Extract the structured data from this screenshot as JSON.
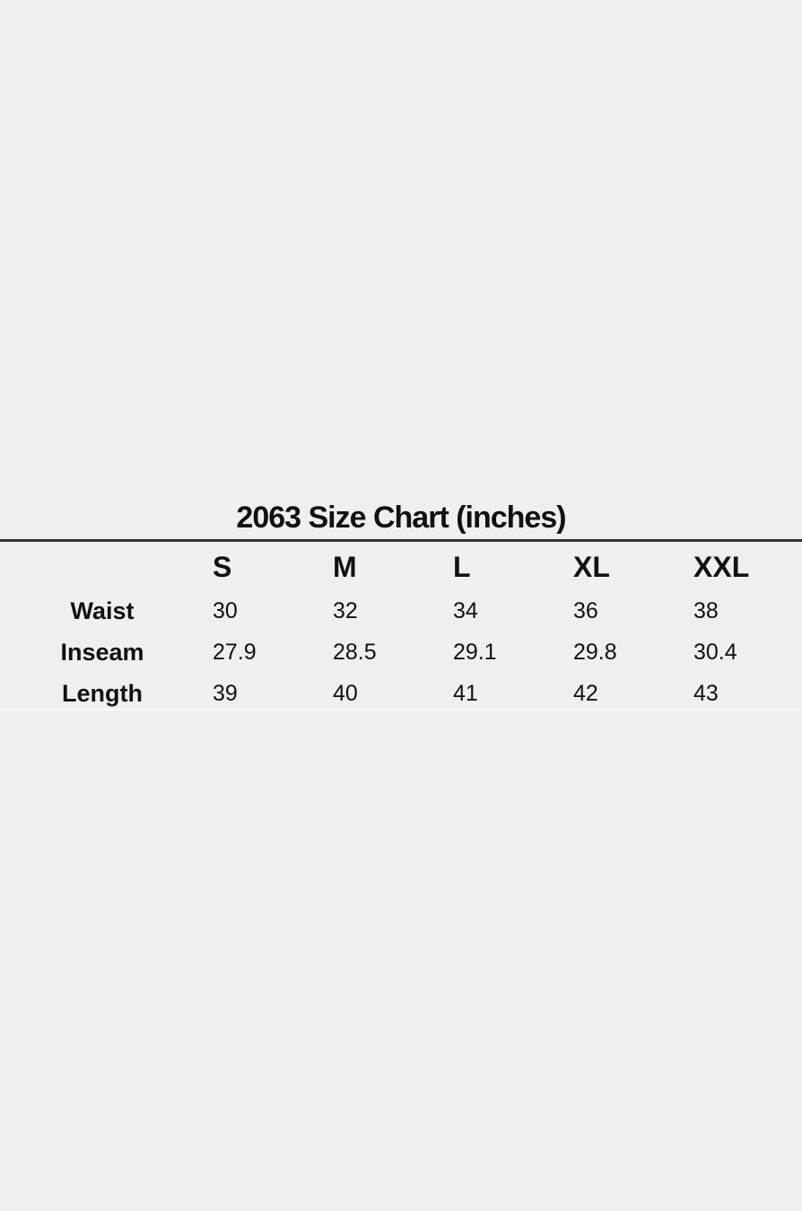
{
  "title": "2063 Size Chart (inches)",
  "chart_data": {
    "type": "table",
    "title": "2063 Size Chart (inches)",
    "columns": [
      "S",
      "M",
      "L",
      "XL",
      "XXL"
    ],
    "rows": [
      {
        "label": "Waist",
        "values": [
          "30",
          "32",
          "34",
          "36",
          "38"
        ]
      },
      {
        "label": "Inseam",
        "values": [
          "27.9",
          "28.5",
          "29.1",
          "29.8",
          "30.4"
        ]
      },
      {
        "label": "Length",
        "values": [
          "39",
          "40",
          "41",
          "42",
          "43"
        ]
      }
    ]
  },
  "colors": {
    "background": "#efefef",
    "text": "#111111",
    "rule": "#333333"
  }
}
